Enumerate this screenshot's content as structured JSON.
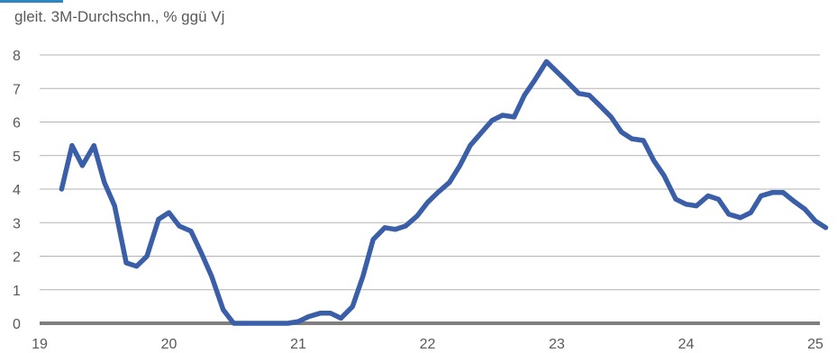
{
  "chart_data": {
    "type": "line",
    "subtitle": "gleit. 3M-Durchschn., % ggü Vj",
    "xlabel": "",
    "ylabel": "",
    "xlim": [
      19.0,
      25.0
    ],
    "ylim": [
      0,
      8
    ],
    "x_tick_labels": [
      "19",
      "20",
      "21",
      "22",
      "23",
      "24",
      "25"
    ],
    "x_tick_values": [
      19,
      20,
      21,
      22,
      23,
      24,
      25
    ],
    "y_tick_labels": [
      "0",
      "1",
      "2",
      "3",
      "4",
      "5",
      "6",
      "7",
      "8"
    ],
    "y_tick_values": [
      0,
      1,
      2,
      3,
      4,
      5,
      6,
      7,
      8
    ],
    "grid": true,
    "legend": "none",
    "colors": {
      "line": "#3a5fa8",
      "grid": "#b3b3b3",
      "axis": "#7f7f7f",
      "text": "#595959"
    },
    "series": [
      {
        "points": [
          [
            19.17,
            4.0
          ],
          [
            19.25,
            5.3
          ],
          [
            19.33,
            4.7
          ],
          [
            19.42,
            5.3
          ],
          [
            19.5,
            4.2
          ],
          [
            19.58,
            3.5
          ],
          [
            19.67,
            1.8
          ],
          [
            19.75,
            1.7
          ],
          [
            19.83,
            2.0
          ],
          [
            19.92,
            3.1
          ],
          [
            20.0,
            3.3
          ],
          [
            20.08,
            2.9
          ],
          [
            20.17,
            2.75
          ],
          [
            20.25,
            2.1
          ],
          [
            20.33,
            1.4
          ],
          [
            20.42,
            0.4
          ],
          [
            20.5,
            0.0
          ],
          [
            20.58,
            0.0
          ],
          [
            20.67,
            0.0
          ],
          [
            20.75,
            0.0
          ],
          [
            20.83,
            0.0
          ],
          [
            20.92,
            0.0
          ],
          [
            21.0,
            0.05
          ],
          [
            21.08,
            0.2
          ],
          [
            21.17,
            0.3
          ],
          [
            21.25,
            0.3
          ],
          [
            21.33,
            0.15
          ],
          [
            21.42,
            0.5
          ],
          [
            21.5,
            1.4
          ],
          [
            21.58,
            2.5
          ],
          [
            21.67,
            2.85
          ],
          [
            21.75,
            2.8
          ],
          [
            21.83,
            2.9
          ],
          [
            21.92,
            3.2
          ],
          [
            22.0,
            3.6
          ],
          [
            22.08,
            3.9
          ],
          [
            22.17,
            4.2
          ],
          [
            22.25,
            4.7
          ],
          [
            22.33,
            5.3
          ],
          [
            22.42,
            5.7
          ],
          [
            22.5,
            6.05
          ],
          [
            22.58,
            6.2
          ],
          [
            22.67,
            6.15
          ],
          [
            22.75,
            6.8
          ],
          [
            22.83,
            7.25
          ],
          [
            22.92,
            7.8
          ],
          [
            23.0,
            7.5
          ],
          [
            23.08,
            7.2
          ],
          [
            23.17,
            6.85
          ],
          [
            23.25,
            6.8
          ],
          [
            23.33,
            6.5
          ],
          [
            23.42,
            6.15
          ],
          [
            23.5,
            5.7
          ],
          [
            23.58,
            5.5
          ],
          [
            23.67,
            5.45
          ],
          [
            23.75,
            4.85
          ],
          [
            23.83,
            4.4
          ],
          [
            23.92,
            3.7
          ],
          [
            24.0,
            3.55
          ],
          [
            24.08,
            3.5
          ],
          [
            24.17,
            3.8
          ],
          [
            24.25,
            3.7
          ],
          [
            24.33,
            3.25
          ],
          [
            24.42,
            3.15
          ],
          [
            24.5,
            3.3
          ],
          [
            24.58,
            3.8
          ],
          [
            24.67,
            3.9
          ],
          [
            24.75,
            3.9
          ],
          [
            24.83,
            3.65
          ],
          [
            24.92,
            3.4
          ],
          [
            25.0,
            3.05
          ],
          [
            25.08,
            2.85
          ]
        ]
      }
    ]
  }
}
